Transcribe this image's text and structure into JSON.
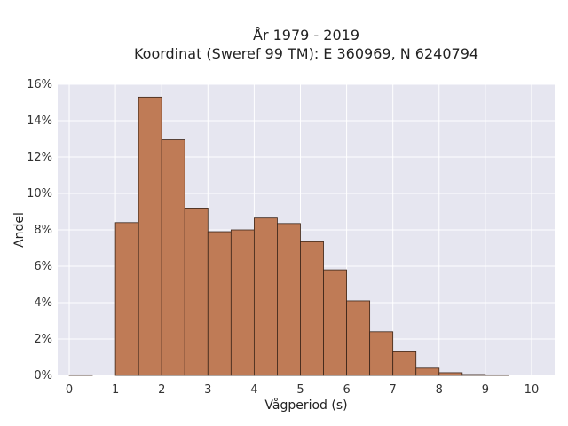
{
  "chart_data": {
    "type": "bar",
    "title": [
      "År 1979 - 2019",
      "Koordinat (Sweref 99 TM): E 360969, N 6240794"
    ],
    "xlabel": "Vågperiod (s)",
    "ylabel": "Andel",
    "xlim": [
      -0.25,
      10.5
    ],
    "ylim": [
      0,
      16
    ],
    "x_ticks": [
      0,
      1,
      2,
      3,
      4,
      5,
      6,
      7,
      8,
      9,
      10
    ],
    "y_ticks": [
      0,
      2,
      4,
      6,
      8,
      10,
      12,
      14,
      16
    ],
    "y_tick_format": "%",
    "grid": true,
    "bar_width": 0.5,
    "bars": [
      {
        "x0": 0.0,
        "value": 0.03
      },
      {
        "x0": 0.5,
        "value": 0.0
      },
      {
        "x0": 1.0,
        "value": 8.4
      },
      {
        "x0": 1.5,
        "value": 15.3
      },
      {
        "x0": 2.0,
        "value": 12.95
      },
      {
        "x0": 2.5,
        "value": 9.2
      },
      {
        "x0": 3.0,
        "value": 7.9
      },
      {
        "x0": 3.5,
        "value": 8.0
      },
      {
        "x0": 4.0,
        "value": 8.65
      },
      {
        "x0": 4.5,
        "value": 8.35
      },
      {
        "x0": 5.0,
        "value": 7.35
      },
      {
        "x0": 5.5,
        "value": 5.8
      },
      {
        "x0": 6.0,
        "value": 4.1
      },
      {
        "x0": 6.5,
        "value": 2.4
      },
      {
        "x0": 7.0,
        "value": 1.3
      },
      {
        "x0": 7.5,
        "value": 0.4
      },
      {
        "x0": 8.0,
        "value": 0.15
      },
      {
        "x0": 8.5,
        "value": 0.05
      },
      {
        "x0": 9.0,
        "value": 0.03
      }
    ],
    "colors": {
      "bar_fill": "#bf7b56",
      "bar_edge": "#3a2418",
      "plot_bg": "#e6e6f0",
      "grid": "#ffffff"
    }
  }
}
